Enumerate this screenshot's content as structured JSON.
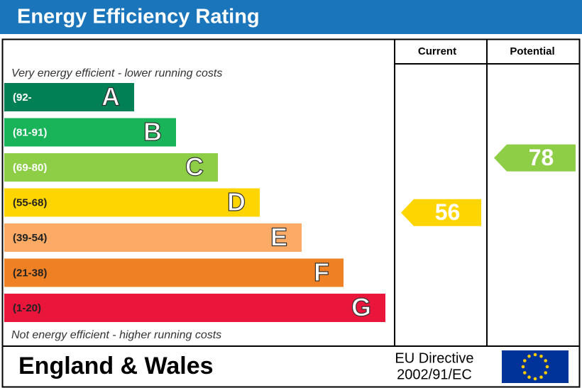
{
  "header": {
    "title": "Energy Efficiency Rating"
  },
  "columns": {
    "current": "Current",
    "potential": "Potential"
  },
  "top_note": "Very energy efficient - lower running costs",
  "bottom_note": "Not energy efficient - higher running costs",
  "bands": [
    {
      "range": "(92-",
      "letter": "A",
      "color": "#008054"
    },
    {
      "range": "(81-91)",
      "letter": "B",
      "color": "#19b459"
    },
    {
      "range": "(69-80)",
      "letter": "C",
      "color": "#8dce46"
    },
    {
      "range": "(55-68)",
      "letter": "D",
      "color": "#ffd500"
    },
    {
      "range": "(39-54)",
      "letter": "E",
      "color": "#fcaa65"
    },
    {
      "range": "(21-38)",
      "letter": "F",
      "color": "#ef8023"
    },
    {
      "range": "(1-20)",
      "letter": "G",
      "color": "#e9153b"
    }
  ],
  "current": 56,
  "potential": 78,
  "footer": {
    "region": "England & Wales",
    "directive": [
      "EU Directive",
      "2002/91/EC"
    ]
  }
}
